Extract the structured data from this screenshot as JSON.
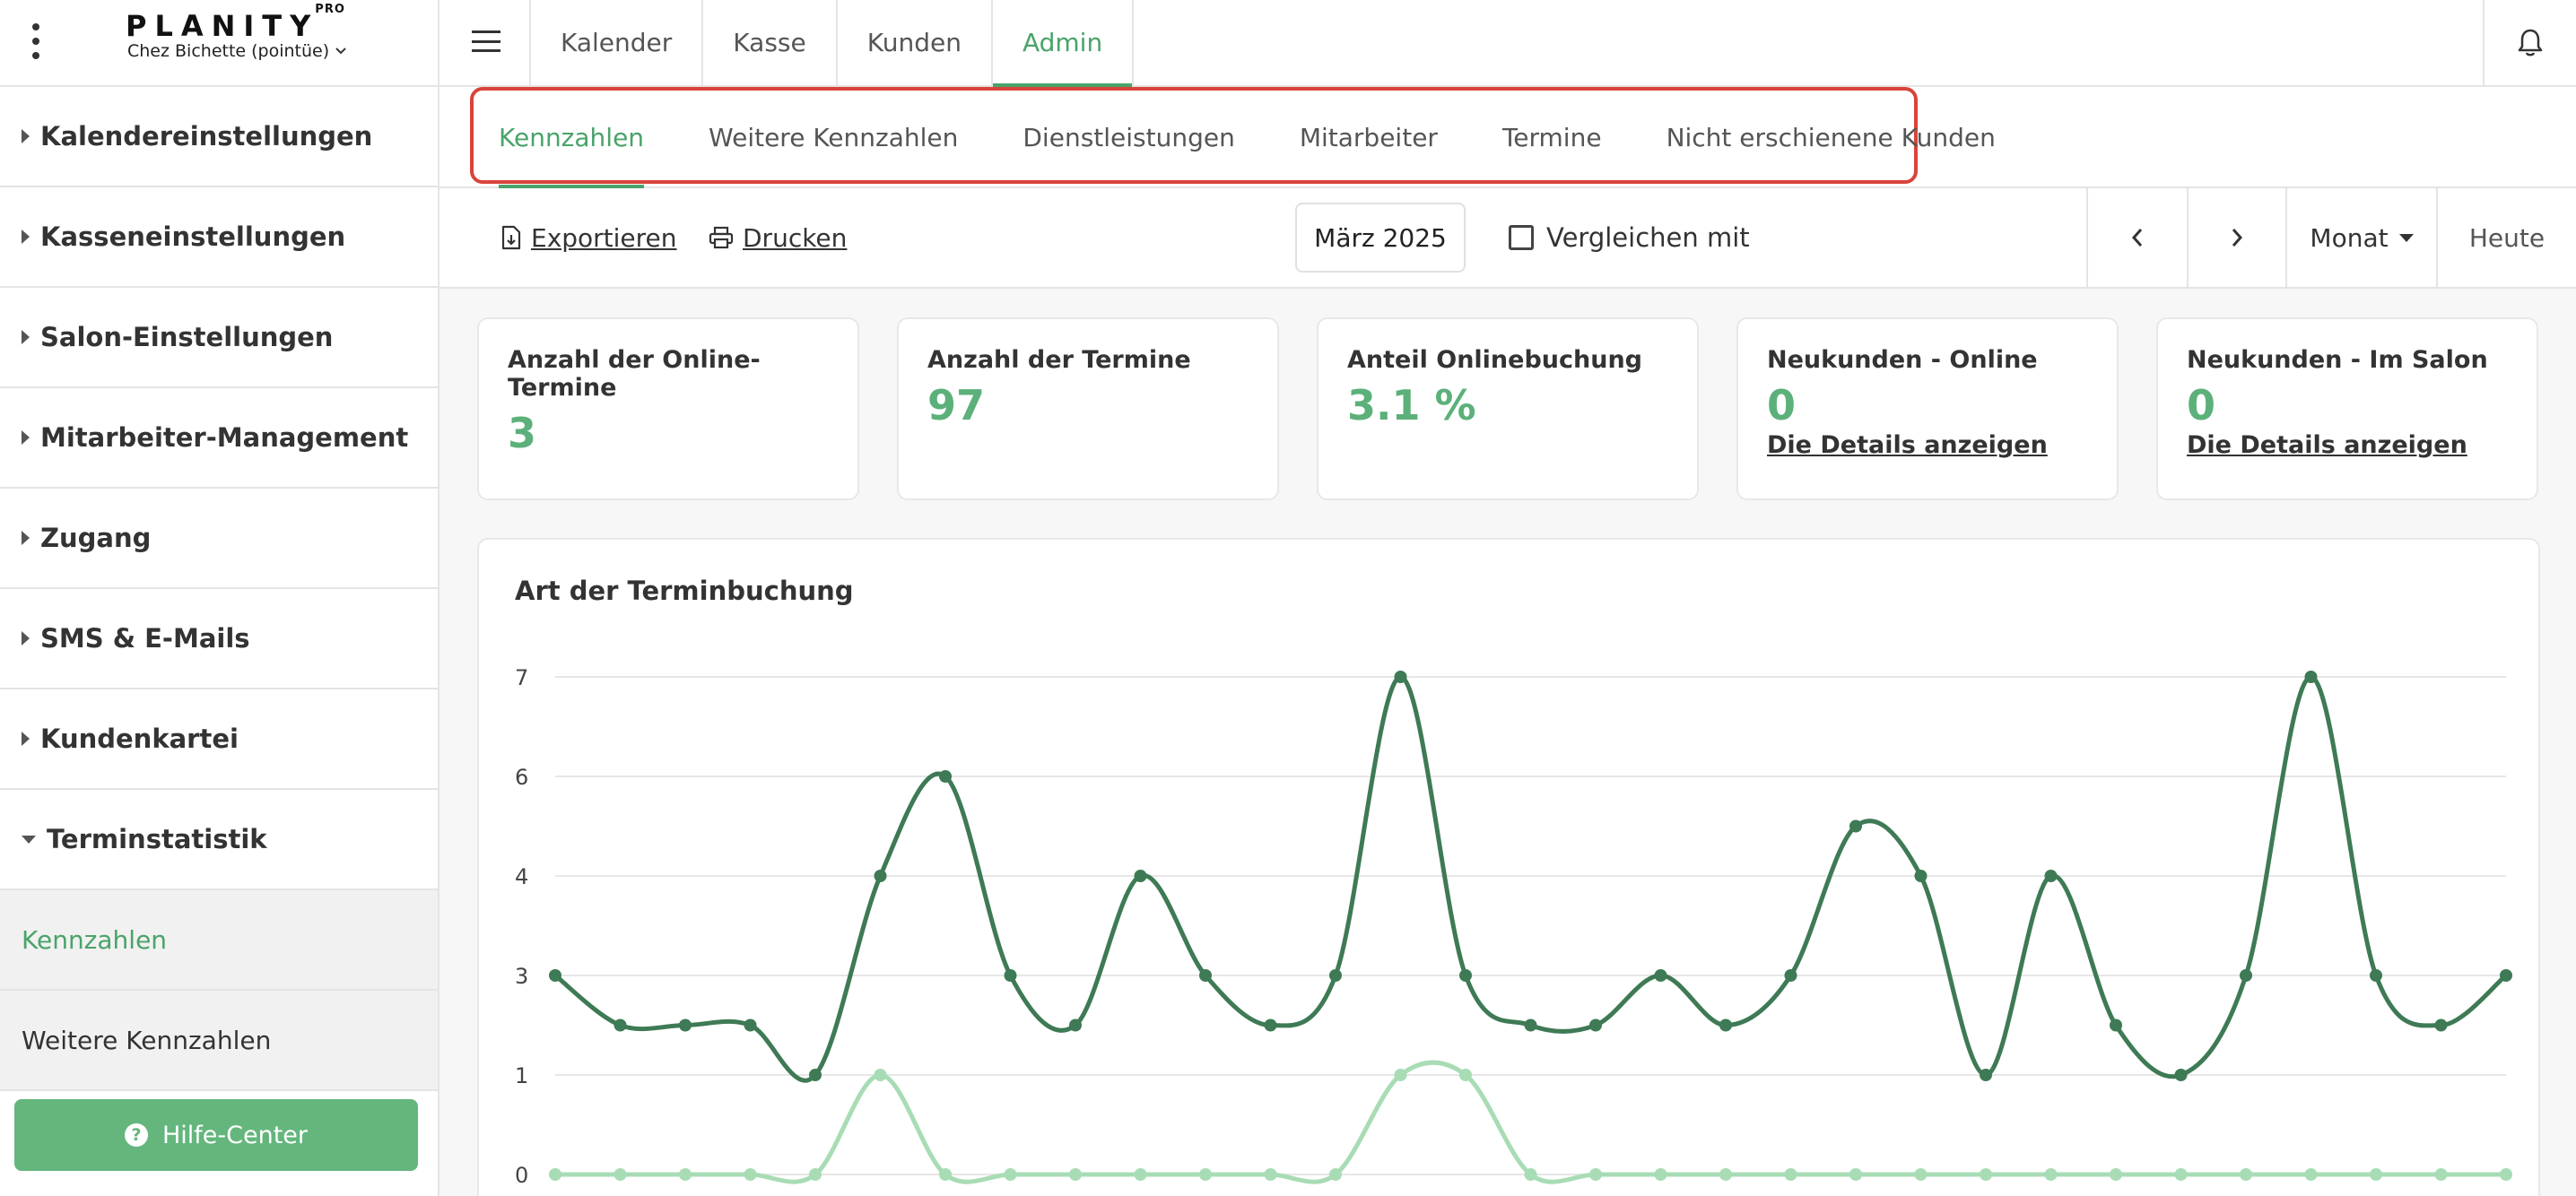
{
  "brand": {
    "logo": "PLANITY",
    "logo_sup": "PRO",
    "salon_name": "Chez Bichette (pointüe)"
  },
  "topnav": {
    "tabs": [
      {
        "label": "Kalender",
        "active": false
      },
      {
        "label": "Kasse",
        "active": false
      },
      {
        "label": "Kunden",
        "active": false
      },
      {
        "label": "Admin",
        "active": true
      }
    ]
  },
  "sidebar": {
    "items": [
      {
        "label": "Kalendereinstellungen"
      },
      {
        "label": "Kasseneinstellungen"
      },
      {
        "label": "Salon-Einstellungen"
      },
      {
        "label": "Mitarbeiter-Management"
      },
      {
        "label": "Zugang"
      },
      {
        "label": "SMS & E-Mails"
      },
      {
        "label": "Kundenkartei"
      },
      {
        "label": "Terminstatistik"
      }
    ],
    "subitems": [
      {
        "label": "Kennzahlen",
        "active": true
      },
      {
        "label": "Weitere Kennzahlen",
        "active": false
      }
    ],
    "help_label": "Hilfe-Center"
  },
  "subtabs": [
    {
      "label": "Kennzahlen",
      "active": true
    },
    {
      "label": "Weitere Kennzahlen",
      "active": false
    },
    {
      "label": "Dienstleistungen",
      "active": false
    },
    {
      "label": "Mitarbeiter",
      "active": false
    },
    {
      "label": "Termine",
      "active": false
    },
    {
      "label": "Nicht erschienene Kunden",
      "active": false
    }
  ],
  "toolbar": {
    "export_label": "Exportieren",
    "print_label": "Drucken",
    "month": "März 2025",
    "compare_label": "Vergleichen mit",
    "period_label": "Monat",
    "today_label": "Heute"
  },
  "kpis": [
    {
      "label": "Anzahl der Online-Termine",
      "value": "3"
    },
    {
      "label": "Anzahl der Termine",
      "value": "97"
    },
    {
      "label": "Anteil Onlinebuchung",
      "value": "3.1 %"
    },
    {
      "label": "Neukunden - Online",
      "value": "0",
      "details": "Die Details anzeigen"
    },
    {
      "label": "Neukunden - Im Salon",
      "value": "0",
      "details": "Die Details anzeigen"
    }
  ],
  "colors": {
    "accent": "#4aa36a",
    "series_dark": "#3e7a55",
    "series_light": "#a8dcb5",
    "highlight_border": "#d9433a"
  },
  "chart_title": "Art der Terminbuchung",
  "chart_data": {
    "type": "line",
    "title": "Art der Terminbuchung",
    "yticks": [
      "0",
      "1",
      "3",
      "4",
      "6",
      "7"
    ],
    "ylim": [
      0,
      7
    ],
    "grid": true,
    "series": [
      {
        "values": [
          3,
          2,
          2,
          2,
          1,
          4,
          6,
          3,
          2,
          4,
          3,
          2,
          3,
          7,
          3,
          2,
          2,
          3,
          2,
          3,
          5,
          4,
          1,
          4,
          2,
          1,
          3,
          7,
          3,
          2,
          3
        ],
        "color": "#3e7a55"
      },
      {
        "values": [
          0,
          0,
          0,
          0,
          0,
          1,
          0,
          0,
          0,
          0,
          0,
          0,
          0,
          1,
          1,
          0,
          0,
          0,
          0,
          0,
          0,
          0,
          0,
          0,
          0,
          0,
          0,
          0,
          0,
          0,
          0
        ],
        "color": "#a8dcb5"
      }
    ]
  }
}
